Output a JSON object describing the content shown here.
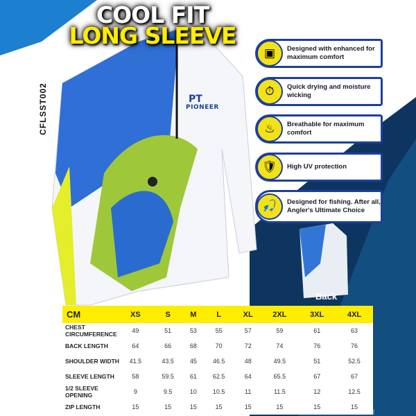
{
  "title": {
    "line1": "COOL FIT",
    "line2": "LONG SLEEVE"
  },
  "product_code": "CFLSST002",
  "brand": "PIONEER",
  "colors": {
    "accent_yellow": "#ffed00",
    "brand_blue": "#1d3f9c",
    "dark_navy": "#0d2a4a"
  },
  "features": [
    {
      "icon": "stretch-fabric-icon",
      "text": "Designed with enhanced for maximum comfort"
    },
    {
      "icon": "stopwatch-icon",
      "text": "Quick drying and moisture wicking"
    },
    {
      "icon": "breathable-fabric-icon",
      "text": "Breathable for maximum comfort"
    },
    {
      "icon": "uv-shield-icon",
      "text": "High UV protection"
    },
    {
      "icon": "fishing-rod-icon",
      "text": "Designed for fishing. After all, Angler's Ultimate Choice"
    }
  ],
  "back_label": "Back",
  "size_chart": {
    "headers": [
      "CM",
      "XS",
      "S",
      "M",
      "L",
      "XL",
      "2XL",
      "3XL",
      "4XL"
    ],
    "rows": [
      {
        "label": "CHEST CIRCUMFERENCE",
        "values": [
          "49",
          "51",
          "53",
          "55",
          "57",
          "59",
          "61",
          "63"
        ]
      },
      {
        "label": "BACK LENGTH",
        "values": [
          "64",
          "66",
          "68",
          "70",
          "72",
          "74",
          "76",
          "76"
        ]
      },
      {
        "label": "SHOULDER WIDTH",
        "values": [
          "41.5",
          "43.5",
          "45",
          "46.5",
          "48",
          "49.5",
          "51",
          "52.5"
        ]
      },
      {
        "label": "SLEEVE LENGTH",
        "values": [
          "58",
          "59.5",
          "61",
          "62.5",
          "64",
          "65.5",
          "67",
          "67"
        ]
      },
      {
        "label": "1/2 SLEEVE OPENING",
        "values": [
          "9",
          "9.5",
          "10",
          "10.5",
          "11",
          "11.5",
          "12",
          "12.5"
        ]
      },
      {
        "label": "ZIP LENGTH",
        "values": [
          "15",
          "15",
          "15",
          "15",
          "15",
          "15",
          "15",
          "15"
        ]
      }
    ]
  }
}
